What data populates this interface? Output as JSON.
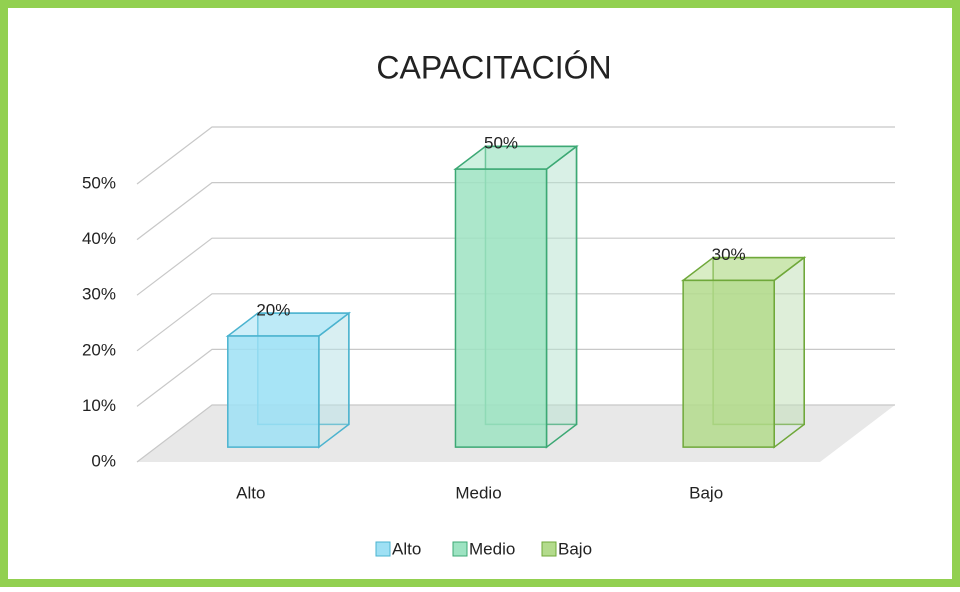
{
  "chart_data": {
    "type": "bar3d",
    "title": "CAPACITACIÓN",
    "categories": [
      "Alto",
      "Medio",
      "Bajo"
    ],
    "values": [
      20,
      50,
      30
    ],
    "value_labels": [
      "20%",
      "50%",
      "30%"
    ],
    "colors": [
      "#9ee0f4",
      "#9de3c2",
      "#b3db8c"
    ],
    "edge_colors": [
      "#4bb3cf",
      "#3ca874",
      "#6fa83a"
    ],
    "ylim": [
      0,
      50
    ],
    "yticks": [
      {
        "value": 0,
        "label": "0%"
      },
      {
        "value": 10,
        "label": "10%"
      },
      {
        "value": 20,
        "label": "20%"
      },
      {
        "value": 30,
        "label": "30%"
      },
      {
        "value": 40,
        "label": "40%"
      },
      {
        "value": 50,
        "label": "50%"
      }
    ],
    "grid": true,
    "legend": "bottom"
  }
}
